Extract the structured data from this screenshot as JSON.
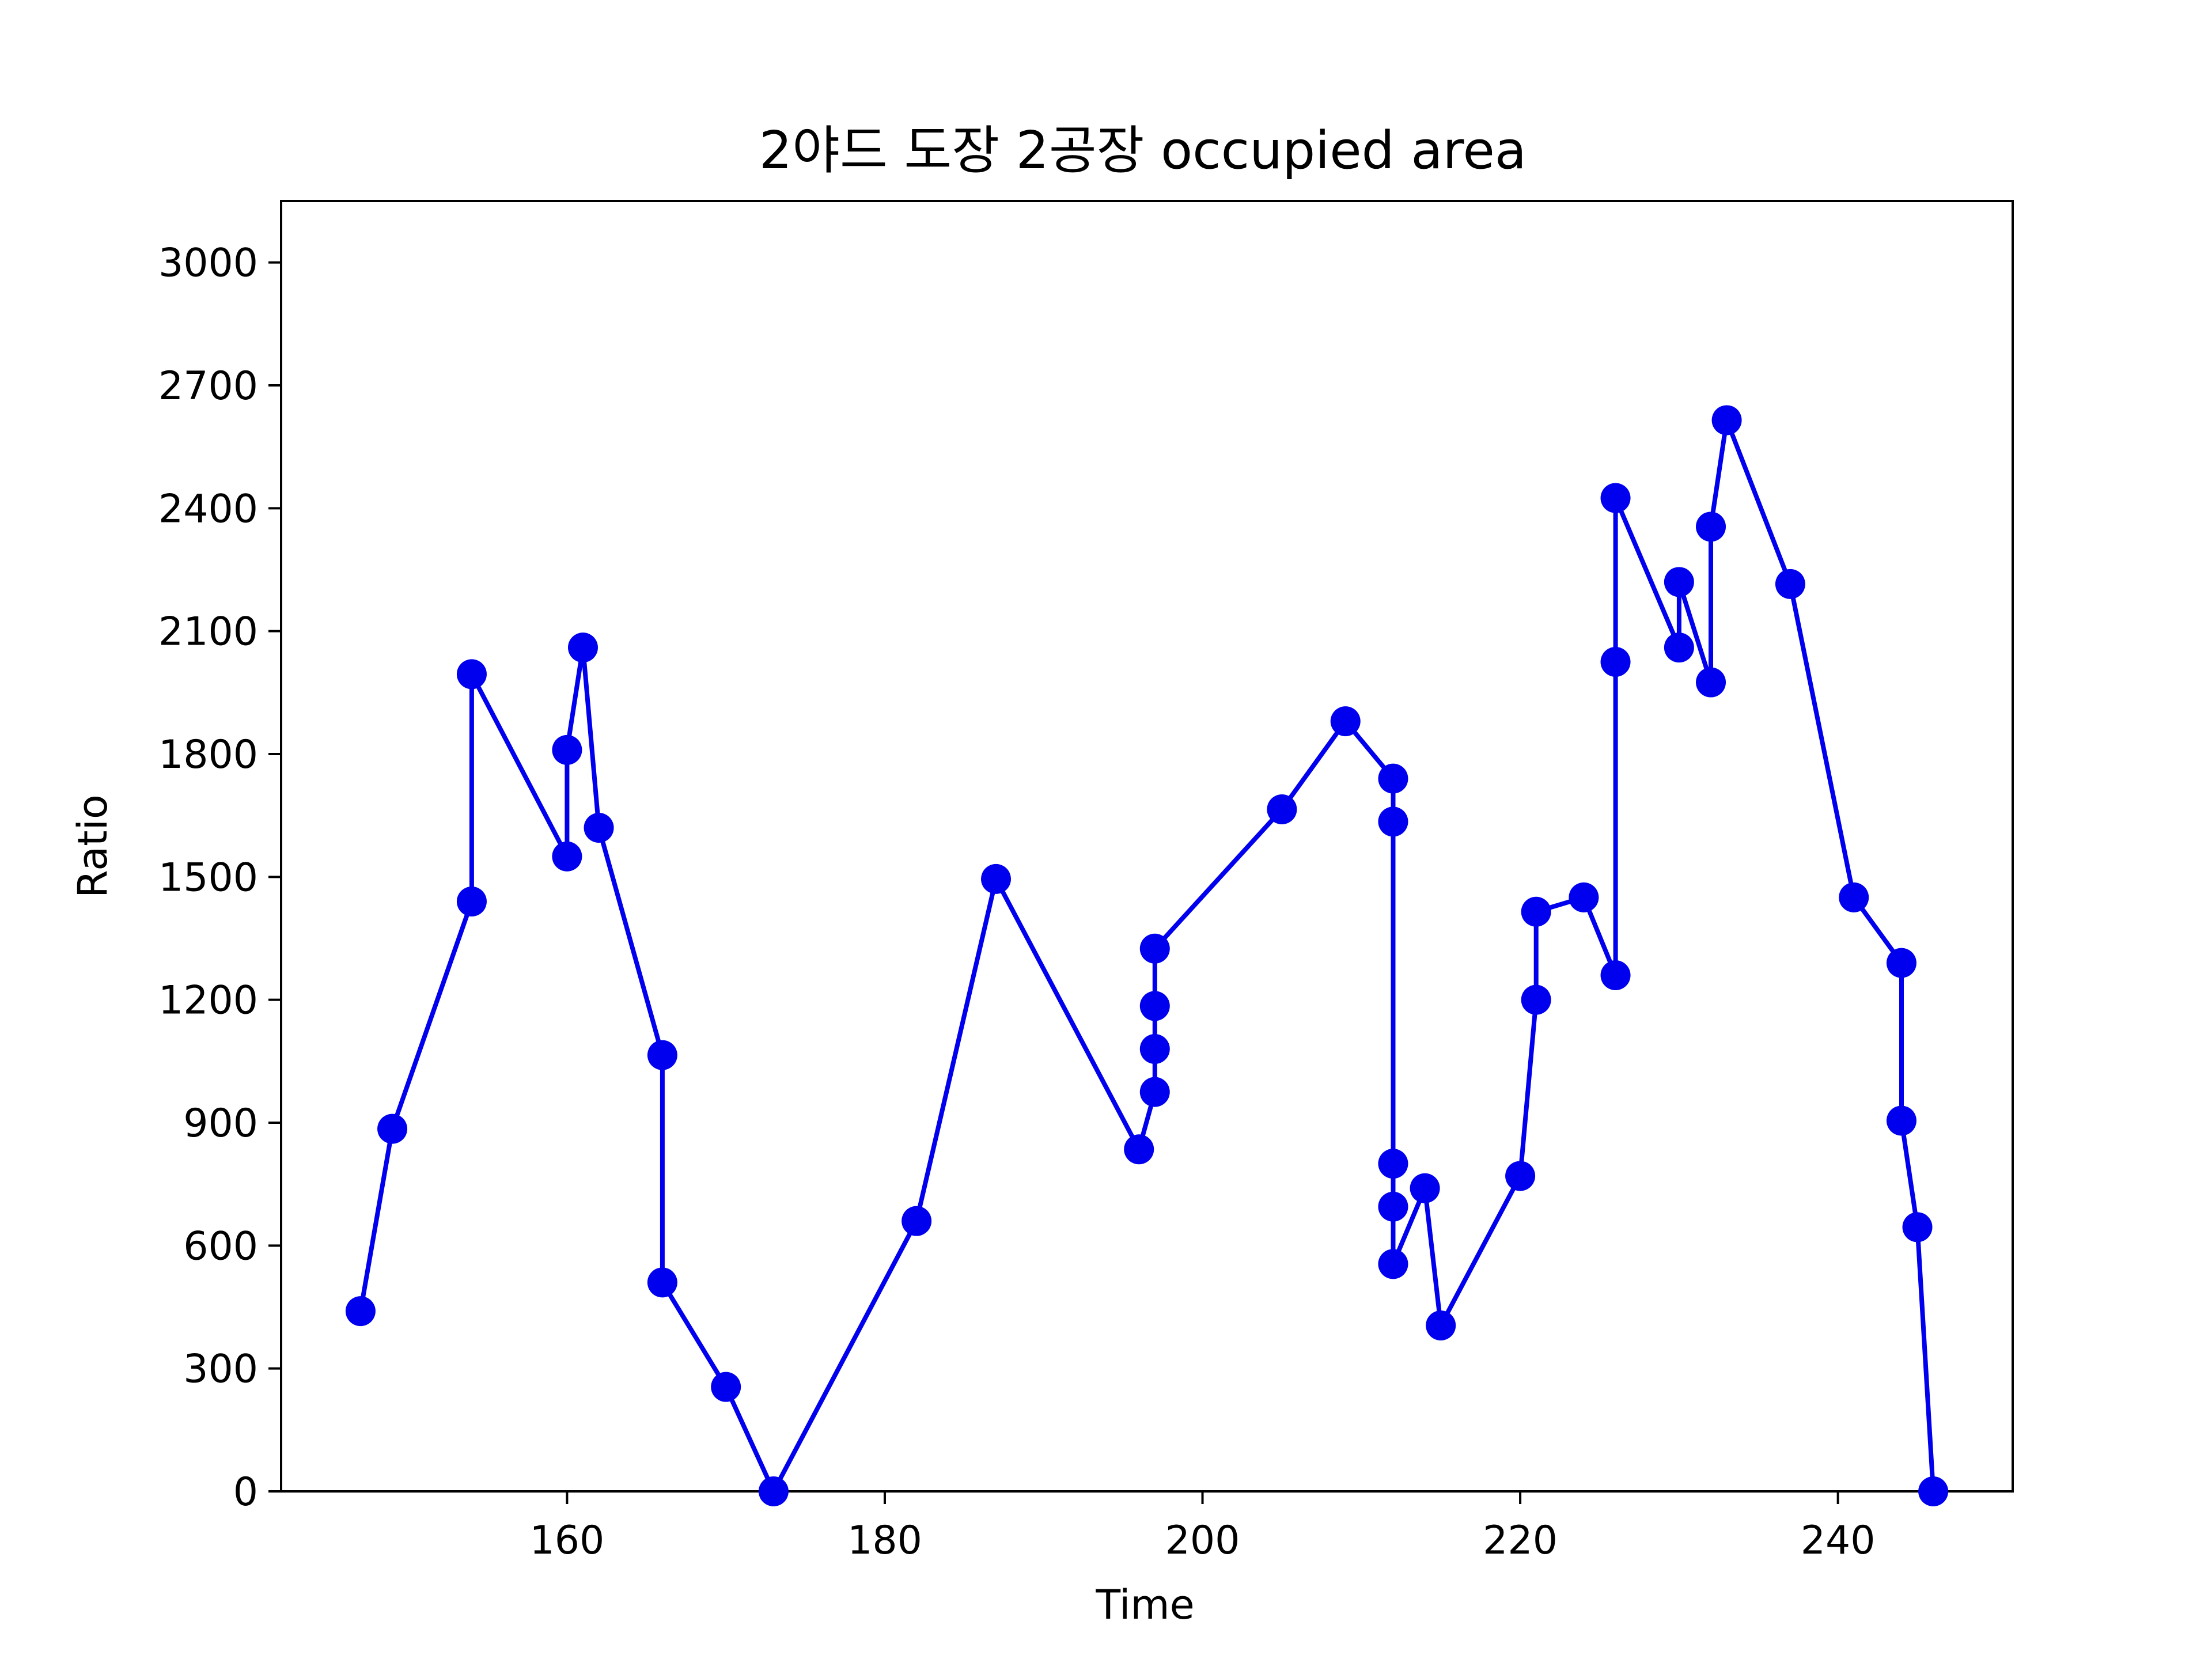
{
  "chart_data": {
    "type": "line",
    "title": "2야드 도장 2공장 occupied area",
    "xlabel": "Time",
    "ylabel": "Ratio",
    "xlim": [
      142,
      251
    ],
    "ylim": [
      0,
      3150
    ],
    "xticks": [
      160,
      180,
      200,
      220,
      240
    ],
    "yticks": [
      0,
      300,
      600,
      900,
      1200,
      1500,
      1800,
      2100,
      2400,
      2700,
      3000
    ],
    "grid": false,
    "legend": "none",
    "colors": {
      "series": "#0000ee",
      "axes": "#000000",
      "background": "#ffffff"
    },
    "series": [
      {
        "marker": "circle",
        "points": [
          [
            147,
            440
          ],
          [
            149,
            885
          ],
          [
            154,
            1440
          ],
          [
            154,
            1995
          ],
          [
            160,
            1550
          ],
          [
            160,
            1810
          ],
          [
            161,
            2060
          ],
          [
            162,
            1620
          ],
          [
            166,
            1065
          ],
          [
            166,
            510
          ],
          [
            170,
            255
          ],
          [
            173,
            0
          ],
          [
            182,
            660
          ],
          [
            187,
            1495
          ],
          [
            196,
            835
          ],
          [
            197,
            975
          ],
          [
            197,
            1080
          ],
          [
            197,
            1185
          ],
          [
            197,
            1325
          ],
          [
            205,
            1665
          ],
          [
            209,
            1880
          ],
          [
            212,
            1740
          ],
          [
            212,
            1635
          ],
          [
            212,
            800
          ],
          [
            212,
            695
          ],
          [
            212,
            555
          ],
          [
            214,
            740
          ],
          [
            215,
            405
          ],
          [
            220,
            770
          ],
          [
            221,
            1200
          ],
          [
            221,
            1415
          ],
          [
            224,
            1450
          ],
          [
            226,
            1260
          ],
          [
            226,
            2025
          ],
          [
            226,
            2425
          ],
          [
            230,
            2060
          ],
          [
            230,
            2220
          ],
          [
            232,
            1975
          ],
          [
            232,
            2355
          ],
          [
            233,
            2615
          ],
          [
            237,
            2215
          ],
          [
            241,
            1450
          ],
          [
            244,
            1290
          ],
          [
            244,
            905
          ],
          [
            245,
            645
          ],
          [
            246,
            0
          ]
        ]
      }
    ]
  }
}
